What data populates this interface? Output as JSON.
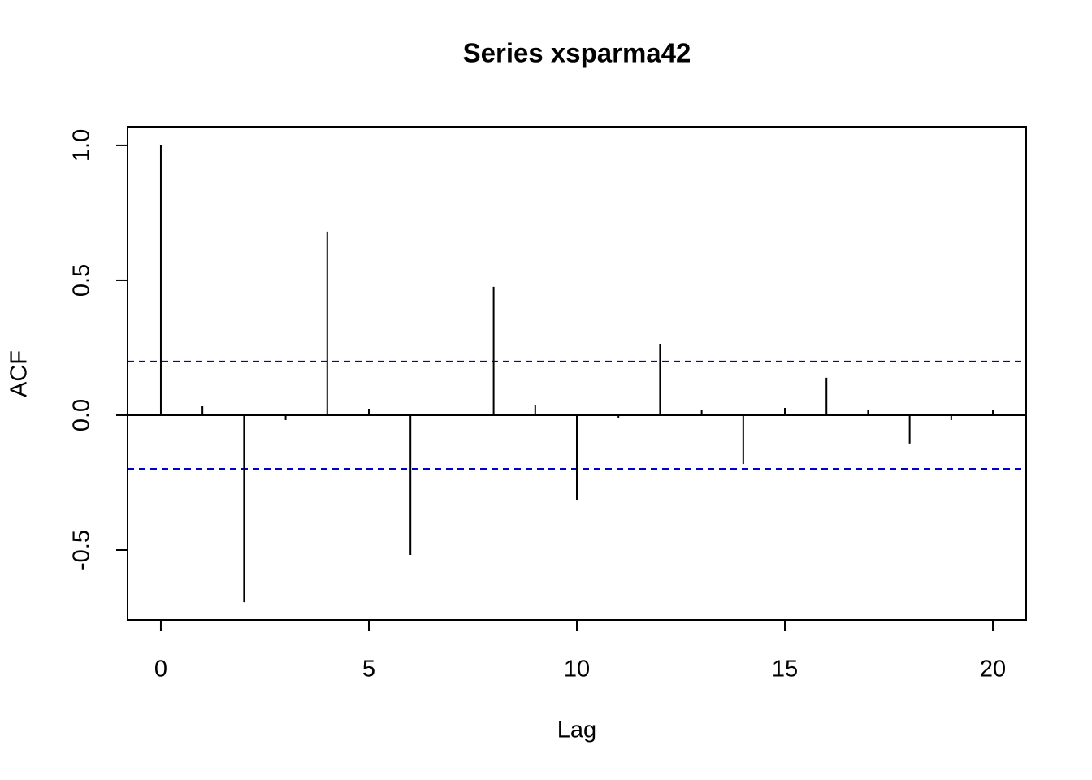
{
  "chart_data": {
    "type": "acf",
    "title": "Series  xsparma42",
    "x_label": "Lag",
    "y_label": "ACF",
    "x": [
      0,
      1,
      2,
      3,
      4,
      5,
      6,
      7,
      8,
      9,
      10,
      11,
      12,
      13,
      14,
      15,
      16,
      17,
      18,
      19,
      20
    ],
    "values": [
      1.0,
      0.033,
      -0.693,
      -0.018,
      0.681,
      0.024,
      -0.518,
      0.006,
      0.476,
      0.039,
      -0.316,
      -0.009,
      0.265,
      0.018,
      -0.181,
      0.027,
      0.139,
      0.021,
      -0.105,
      -0.018,
      0.018
    ],
    "color": "#000000",
    "conf_limits": [
      0.199,
      -0.199
    ],
    "conf_color": "#0000cc",
    "xlim": [
      -0.8,
      20.8
    ],
    "xticks": [
      0,
      5,
      10,
      15,
      20
    ],
    "ylim": [
      -0.759,
      1.069
    ],
    "yticks": [
      -0.5,
      {
        "value": 0,
        "label": "0.0"
      },
      0.5,
      {
        "value": 1,
        "label": "1.0"
      }
    ]
  }
}
